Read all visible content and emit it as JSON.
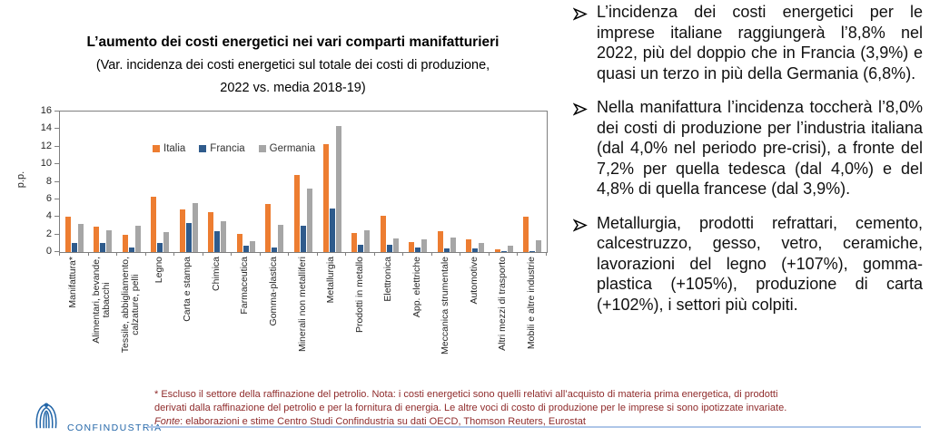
{
  "chart": {
    "title": "L’aumento dei costi energetici nei vari comparti manifatturieri",
    "subtitle_line1": "(Var. incidenza dei costi energetici sul totale dei costi di produzione,",
    "subtitle_line2": "2022 vs. media 2018-19)",
    "ylabel": "p.p."
  },
  "chart_data": {
    "type": "bar",
    "title": "L’aumento dei costi energetici nei vari comparti manifatturieri",
    "subtitle": "(Var. incidenza dei costi energetici sul totale dei costi di produzione, 2022 vs. media 2018-19)",
    "ylabel": "p.p.",
    "ylim": [
      0,
      16
    ],
    "ytick_step": 2,
    "grid": false,
    "legend_position": "inside-top-center",
    "categories": [
      [
        "Manifattura*"
      ],
      [
        "Alimentari, bevande,",
        "tabacchi"
      ],
      [
        "Tessile, abbigliamento,",
        "calzature, pelli"
      ],
      [
        "Legno"
      ],
      [
        "Carta e stampa"
      ],
      [
        "Chimica"
      ],
      [
        "Farmaceutica"
      ],
      [
        "Gomma-plastica"
      ],
      [
        "Minerali non metalliferi"
      ],
      [
        "Metallurgia"
      ],
      [
        "Prodotti in metallo"
      ],
      [
        "Elettronica"
      ],
      [
        "App. elettriche"
      ],
      [
        "Meccanica strumentale"
      ],
      [
        "Automotive"
      ],
      [
        "Altri mezzi di trasporto"
      ],
      [
        "Mobili e altre industrie"
      ]
    ],
    "series": [
      {
        "name": "Italia",
        "color": "#ED7D31",
        "values": [
          4.0,
          2.9,
          2.0,
          6.3,
          4.9,
          4.5,
          2.1,
          5.5,
          8.8,
          12.3,
          2.2,
          4.1,
          1.1,
          2.4,
          1.4,
          0.3,
          4.0
        ]
      },
      {
        "name": "Francia",
        "color": "#2F5B8C",
        "values": [
          1.0,
          1.0,
          0.5,
          1.0,
          3.3,
          2.4,
          0.7,
          0.5,
          3.0,
          5.0,
          0.8,
          0.8,
          0.5,
          0.4,
          0.4,
          0.1,
          0.1
        ]
      },
      {
        "name": "Germania",
        "color": "#A6A6A6",
        "values": [
          3.2,
          2.5,
          3.0,
          2.3,
          5.6,
          3.5,
          1.2,
          3.1,
          7.2,
          14.4,
          2.5,
          1.6,
          1.4,
          1.7,
          1.0,
          0.7,
          1.3
        ]
      }
    ]
  },
  "bullets": [
    {
      "text": "L’incidenza dei costi energetici per le imprese italiane raggiungerà l’8,8% nel 2022, più del doppio che in Francia (3,9%) e quasi un terzo in più della Germania (6,8%)."
    },
    {
      "text": "Nella manifattura l’incidenza toccherà l’8,0% dei costi di produzione per l’industria italiana (dal 4,0% nel periodo pre-crisi), a fronte del 7,2% per quella tedesca (dal 4,0%) e del 4,8% di quella francese (dal 3,9%)."
    },
    {
      "text": "Metallurgia, prodotti refrattari, cemento, calcestruzzo, gesso, vetro, ceramiche, lavorazioni del legno (+107%), gomma-plastica (+105%), produzione di carta (+102%), i settori più colpiti."
    }
  ],
  "footnote": {
    "line1": "* Escluso il settore della raffinazione del petrolio. Nota: i costi energetici sono quelli relativi all’acquisto di materia prima energetica, di prodotti",
    "line2": "derivati dalla raffinazione del petrolio e per la fornitura di energia. Le altre voci di costo di produzione per le imprese si sono ipotizzate invariate.",
    "fonte_label": "Fonte",
    "fonte_rest": ": elaborazioni e stime Centro Studi Confindustria su dati OECD, Thomson Reuters, Eurostat"
  },
  "logo": {
    "text": "CONFINDUSTRIA",
    "color": "#2366A8"
  }
}
